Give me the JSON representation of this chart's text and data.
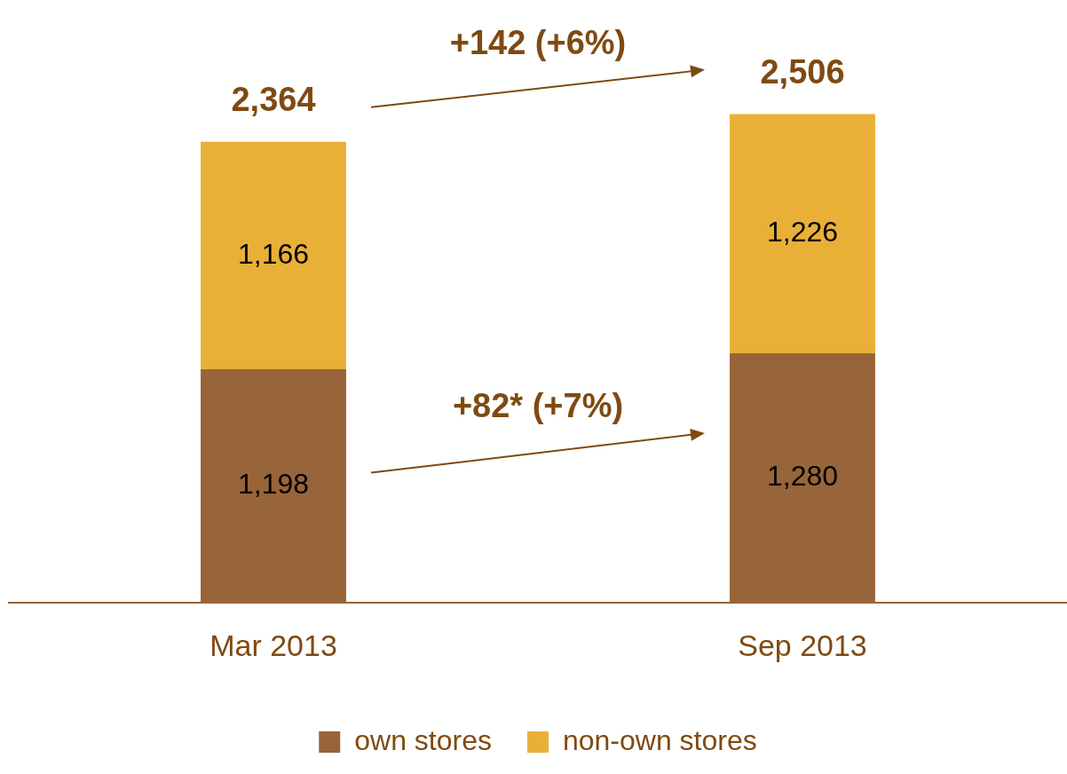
{
  "chart_data": {
    "type": "bar",
    "stacked": true,
    "categories": [
      "Mar 2013",
      "Sep 2013"
    ],
    "series": [
      {
        "name": "own stores",
        "color": "#98643a",
        "values": [
          1198,
          1280
        ],
        "value_labels": [
          "1,198",
          "1,280"
        ]
      },
      {
        "name": "non-own stores",
        "color": "#e9b038",
        "values": [
          1166,
          1226
        ],
        "value_labels": [
          "1,166",
          "1,226"
        ]
      }
    ],
    "totals": [
      "2,364",
      "2,506"
    ],
    "annotations": [
      "+142 (+6%)",
      "+82* (+7%)"
    ],
    "legend": "bottom",
    "grid": false
  }
}
